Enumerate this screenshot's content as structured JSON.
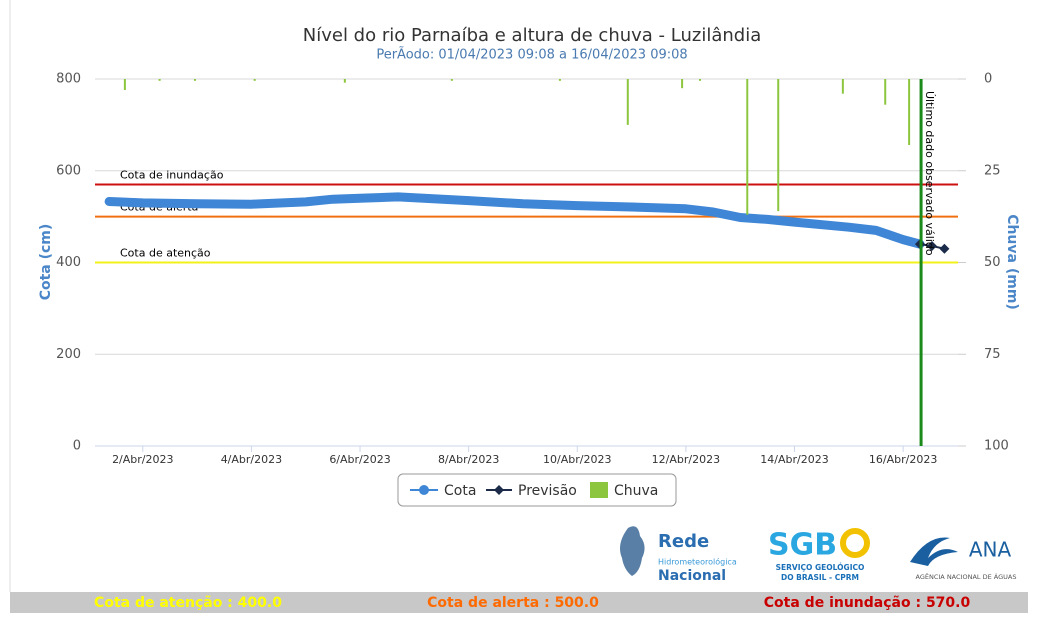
{
  "chart_data": {
    "type": "line",
    "title": "Nível do rio Parnaíba e altura de chuva - Luzilândia",
    "subtitle": "PerÃodo: 01/04/2023 09:08 a 16/04/2023 09:08",
    "y_label": "Cota (cm)",
    "y2_label": "Chuva (mm)",
    "xlim": [
      1.12,
      17.01
    ],
    "xticks": [
      {
        "value": 2,
        "label": "2/Abr/2023"
      },
      {
        "value": 4,
        "label": "4/Abr/2023"
      },
      {
        "value": 6,
        "label": "6/Abr/2023"
      },
      {
        "value": 8,
        "label": "8/Abr/2023"
      },
      {
        "value": 10,
        "label": "10/Abr/2023"
      },
      {
        "value": 12,
        "label": "12/Abr/2023"
      },
      {
        "value": 14,
        "label": "14/Abr/2023"
      },
      {
        "value": 16,
        "label": "16/Abr/2023"
      }
    ],
    "ylim": [
      0,
      800
    ],
    "yticks": [
      0,
      200,
      400,
      600,
      800
    ],
    "y2lim": [
      0,
      100
    ],
    "y2ticks": [
      0,
      25,
      50,
      75,
      100
    ],
    "y2_inverted": true,
    "grid": true,
    "series": [
      {
        "name": "Cota",
        "color": "#3f86d6",
        "kind": "line",
        "x": [
          1.38,
          2,
          3,
          4,
          5,
          5.5,
          6,
          6.7,
          7,
          8,
          9,
          10,
          11,
          12,
          12.5,
          13,
          13.5,
          14,
          15,
          15.5,
          16,
          16.31
        ],
        "values": [
          533,
          530,
          528,
          527,
          532,
          538,
          540,
          543,
          541,
          535,
          528,
          524,
          521,
          517,
          510,
          498,
          494,
          488,
          477,
          470,
          450,
          440
        ]
      },
      {
        "name": "Previsão",
        "color": "#1c2b4a",
        "kind": "forecast",
        "x": [
          16.31,
          16.53,
          16.76
        ],
        "values": [
          440,
          436,
          430
        ]
      },
      {
        "name": "Chuva",
        "color": "#8cc63f",
        "kind": "bar",
        "axis": "y2",
        "x": [
          1.67,
          2.31,
          2.96,
          4.06,
          5.72,
          7.69,
          9.68,
          10.93,
          11.93,
          12.26,
          13.13,
          13.7,
          14.89,
          15.67,
          16.11
        ],
        "values": [
          3,
          0.5,
          0.5,
          0.5,
          1,
          0.5,
          0.5,
          12.5,
          2.5,
          0.5,
          37,
          36,
          4,
          7,
          18
        ]
      }
    ],
    "thresholds": [
      {
        "label": "Cota de inundação",
        "value": 570,
        "color": "#cc1010"
      },
      {
        "label": "Cota de alerta",
        "value": 500,
        "color": "#f07010"
      },
      {
        "label": "Cota de atenção",
        "value": 400,
        "color": "#f2f21a"
      }
    ],
    "marker": {
      "x": 16.33,
      "label": "Último dado observado válido",
      "color": "#1a8a1a"
    }
  },
  "logos": {
    "rede": [
      "Rede",
      "Hidrometeorológica",
      "Nacional"
    ],
    "sgb": [
      "SGB",
      "SERVIÇO GEOLÓGICO",
      "DO BRASIL - CPRM"
    ],
    "ana": [
      "ANA",
      "AGÊNCIA NACIONAL DE ÁGUAS"
    ]
  },
  "footer": [
    {
      "text": "Cota de atenção : 400.0",
      "color": "#ffff00"
    },
    {
      "text": "Cota de alerta : 500.0",
      "color": "#ff6a00"
    },
    {
      "text": "Cota de inundação : 570.0",
      "color": "#c80000"
    }
  ]
}
